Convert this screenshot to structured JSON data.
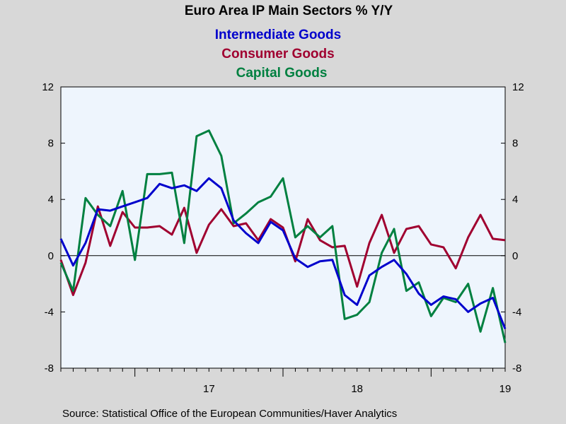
{
  "chart_data": {
    "type": "line",
    "title": "Euro Area IP Main Sectors % Y/Y",
    "source": "Source:  Statistical Office of the European Communities/Haver Analytics",
    "ylim": [
      -8,
      12
    ],
    "y_ticks": [
      "12",
      "8",
      "4",
      "0",
      "-4",
      "-8"
    ],
    "y_tick_values": [
      12,
      8,
      4,
      0,
      -4,
      -8
    ],
    "x_tick_labels": [
      "17",
      "18",
      "19"
    ],
    "x_period": {
      "start": "2016-07",
      "end": "2019-10",
      "frequency": "monthly"
    },
    "grid": false,
    "zero_line": true,
    "legend_position": "top-center",
    "plot_background": "#eef5fd",
    "series": [
      {
        "name": "Intermediate Goods",
        "color": "#0000cc",
        "values": [
          1.2,
          -0.7,
          0.9,
          3.3,
          3.2,
          3.5,
          3.8,
          4.1,
          5.1,
          4.8,
          5.0,
          4.6,
          5.5,
          4.8,
          2.5,
          1.6,
          0.9,
          2.4,
          1.8,
          -0.2,
          -0.8,
          -0.4,
          -0.3,
          -2.8,
          -3.5,
          -1.4,
          -0.8,
          -0.3,
          -1.3,
          -2.7,
          -3.5,
          -2.9,
          -3.1,
          -4.0,
          -3.4,
          -3.0,
          -5.2
        ]
      },
      {
        "name": "Consumer Goods",
        "color": "#a00030",
        "values": [
          -0.3,
          -2.8,
          -0.5,
          3.5,
          0.7,
          3.1,
          2.0,
          2.0,
          2.1,
          1.5,
          3.4,
          0.2,
          2.2,
          3.3,
          2.1,
          2.3,
          1.1,
          2.6,
          2.0,
          -0.4,
          2.6,
          1.1,
          0.6,
          0.7,
          -2.2,
          0.9,
          2.9,
          0.2,
          1.9,
          2.1,
          0.8,
          0.6,
          -0.9,
          1.3,
          2.9,
          1.2,
          1.1
        ]
      },
      {
        "name": "Capital Goods",
        "color": "#008040",
        "values": [
          -0.5,
          -2.5,
          4.1,
          2.9,
          2.1,
          4.6,
          -0.3,
          5.8,
          5.8,
          5.9,
          0.9,
          8.5,
          8.9,
          7.1,
          2.3,
          3.0,
          3.8,
          4.2,
          5.5,
          1.3,
          2.1,
          1.3,
          2.1,
          -4.5,
          -4.2,
          -3.3,
          0.2,
          1.9,
          -2.5,
          -1.9,
          -4.3,
          -3.0,
          -3.3,
          -2.0,
          -5.4,
          -2.3,
          -6.2
        ]
      }
    ]
  }
}
